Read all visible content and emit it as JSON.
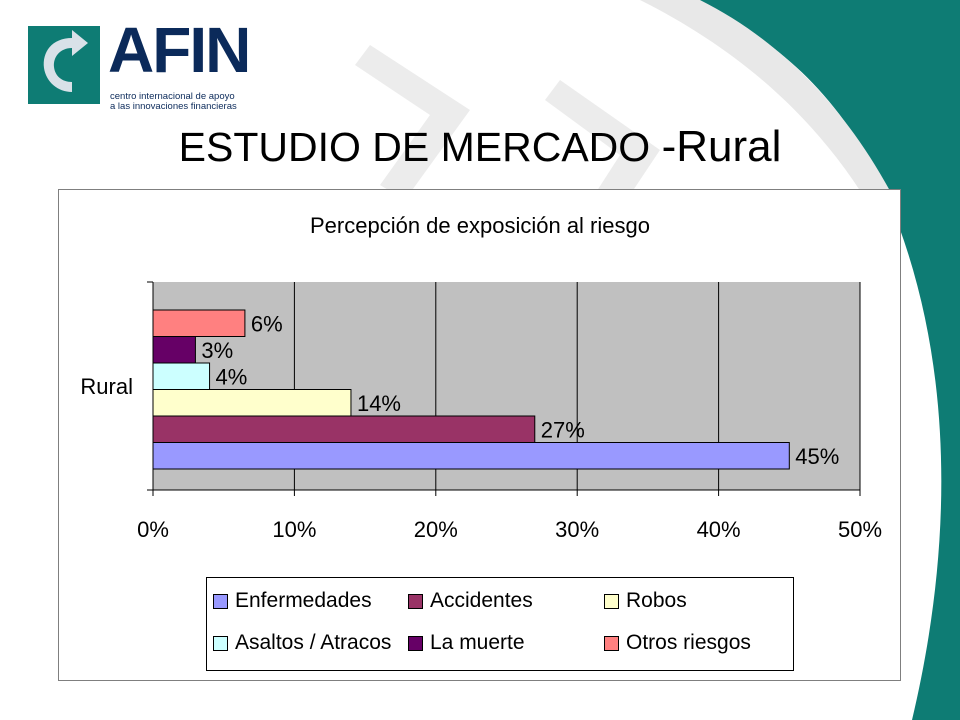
{
  "logo": {
    "name": "AFIN",
    "tagline_line1": "centro internacional de apoyo",
    "tagline_line2": "a las innovaciones financieras"
  },
  "slide": {
    "title_main": "ESTUDIO DE MERCADO ",
    "title_suffix": "-Rural"
  },
  "colors": {
    "teal": "#0e7c74",
    "navy": "#0b2a5a",
    "plot_bg": "#c0c0c0"
  },
  "chart_data": {
    "type": "bar",
    "orientation": "horizontal",
    "title": "Percepción de exposición al riesgo",
    "category": "Rural",
    "xlim": [
      0,
      50
    ],
    "x_ticks": [
      "0%",
      "10%",
      "20%",
      "30%",
      "40%",
      "50%"
    ],
    "grid": true,
    "legend_position": "bottom",
    "series": [
      {
        "name": "Enfermedades",
        "value": 45,
        "label": "45%",
        "color": "#9999ff"
      },
      {
        "name": "Accidentes",
        "value": 27,
        "label": "27%",
        "color": "#993366"
      },
      {
        "name": "Robos",
        "value": 14,
        "label": "14%",
        "color": "#ffffcc"
      },
      {
        "name": "Asaltos / Atracos",
        "value": 4,
        "label": "4%",
        "color": "#ccffff"
      },
      {
        "name": "La muerte",
        "value": 3,
        "label": "3%",
        "color": "#660066"
      },
      {
        "name": "Otros riesgos",
        "value": 6.5,
        "label": "6%",
        "color": "#ff8080"
      }
    ]
  }
}
